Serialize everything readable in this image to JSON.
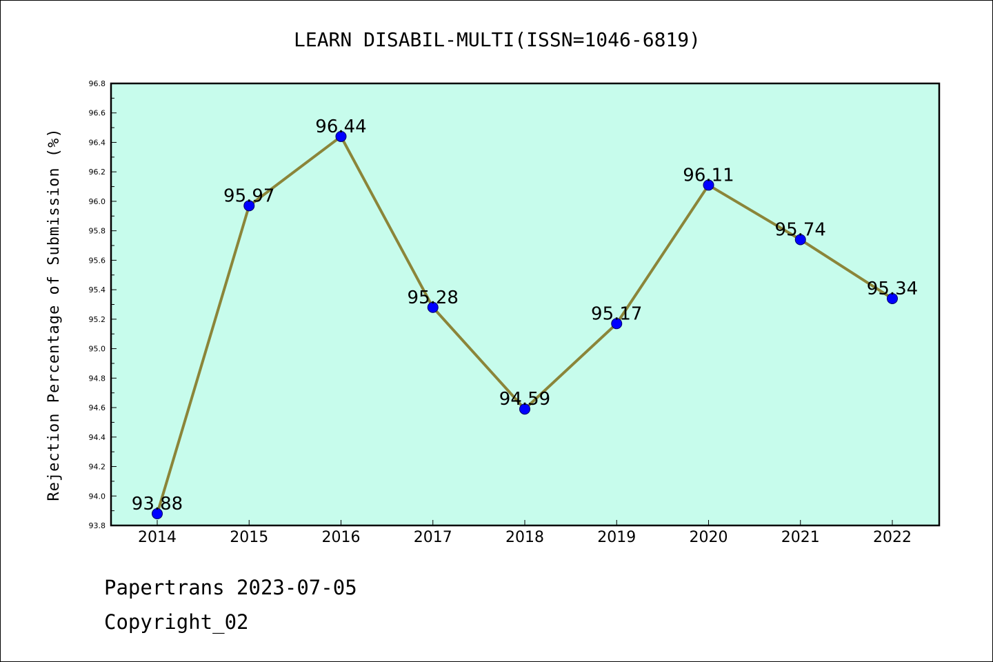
{
  "chart_data": {
    "type": "line",
    "title": "LEARN DISABIL-MULTI(ISSN=1046-6819)",
    "xlabel": "",
    "ylabel": "Rejection Percentage of Submission (%)",
    "categories": [
      "2014",
      "2015",
      "2016",
      "2017",
      "2018",
      "2019",
      "2020",
      "2021",
      "2022"
    ],
    "series": [
      {
        "values": [
          93.88,
          95.97,
          96.44,
          95.28,
          94.59,
          95.17,
          96.11,
          95.74,
          95.34
        ]
      }
    ],
    "data_labels": [
      "93.88",
      "95.97",
      "96.44",
      "95.28",
      "94.59",
      "95.17",
      "96.11",
      "95.74",
      "95.34"
    ],
    "ylim": [
      93.8,
      96.8
    ],
    "yticks": [
      "93.8",
      "94.0",
      "94.2",
      "94.4",
      "94.6",
      "94.8",
      "95.0",
      "95.2",
      "95.4",
      "95.6",
      "95.8",
      "96.0",
      "96.2",
      "96.4",
      "96.6",
      "96.8"
    ],
    "grid": false,
    "legend": "none",
    "colors": {
      "plot_background": "#c7fcec",
      "line": "#8b8539",
      "marker": "#0000ff"
    }
  },
  "footer": {
    "line1": "Papertrans 2023-07-05",
    "line2": "Copyright_02"
  }
}
